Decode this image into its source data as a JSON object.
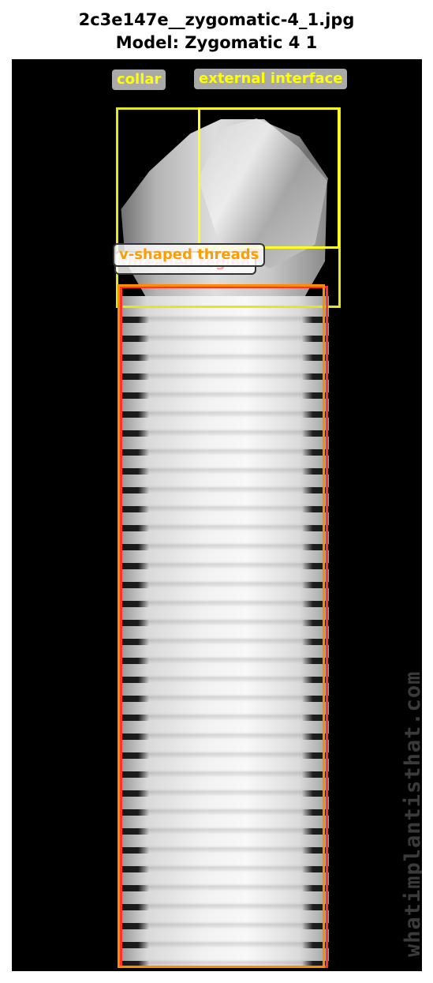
{
  "title_line1": "2c3e147e__zygomatic-4_1.jpg",
  "title_line2": "Model: Zygomatic 4 1",
  "watermark": "whatimplantisthat.com",
  "annotations": [
    {
      "label": "collar",
      "color": "#e6e61e"
    },
    {
      "label": "external interface",
      "color": "#ffff22"
    },
    {
      "label": "threaded region",
      "color": "#ff3030"
    },
    {
      "label": "v-shaped threads",
      "color": "#ff8c00"
    }
  ],
  "colors": {
    "background": "#000000",
    "title_text": "#000000",
    "label_bg": "#a9a9a9"
  }
}
